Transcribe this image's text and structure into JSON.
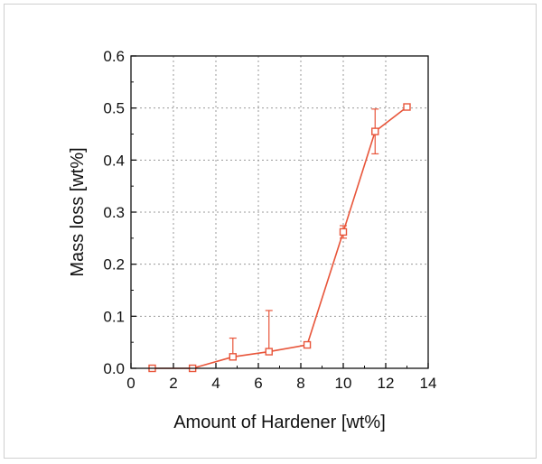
{
  "chart_data": {
    "type": "line",
    "title": "",
    "xlabel": "Amount of Hardener [wt%]",
    "ylabel": "Mass loss [wt%]",
    "xlim": [
      0,
      14
    ],
    "ylim": [
      0,
      0.6
    ],
    "xticks": [
      0,
      2,
      4,
      6,
      8,
      10,
      12,
      14
    ],
    "yticks": [
      0.0,
      0.1,
      0.2,
      0.3,
      0.4,
      0.5,
      0.6
    ],
    "xtick_labels": [
      "0",
      "2",
      "4",
      "6",
      "8",
      "10",
      "12",
      "14"
    ],
    "ytick_labels": [
      "0.0",
      "0.1",
      "0.2",
      "0.3",
      "0.4",
      "0.5",
      "0.6"
    ],
    "grid": true,
    "series": [
      {
        "x": [
          1.0,
          2.9,
          4.8,
          6.5,
          8.3,
          10.0,
          11.5,
          13.0
        ],
        "y": [
          0.0,
          0.0,
          0.022,
          0.032,
          0.045,
          0.262,
          0.455,
          0.502
        ],
        "err_up": [
          0.0,
          0.0,
          0.036,
          0.079,
          0.004,
          0.012,
          0.043,
          0.004
        ],
        "err_down": [
          0.0,
          0.0,
          0.0,
          0.0,
          0.004,
          0.012,
          0.043,
          0.004
        ],
        "color": "#e8553a",
        "marker": "open-square"
      }
    ]
  }
}
